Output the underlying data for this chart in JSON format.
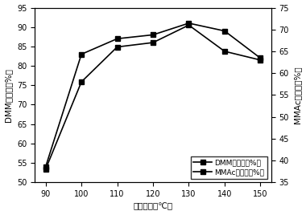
{
  "x": [
    90,
    100,
    110,
    120,
    130,
    140,
    150
  ],
  "dmm_conversion": [
    54,
    83,
    87,
    88,
    91,
    89,
    82
  ],
  "mmac_selectivity": [
    38,
    58,
    66,
    67,
    71,
    65,
    63
  ],
  "left_ylim": [
    50,
    95
  ],
  "left_yticks": [
    50,
    55,
    60,
    65,
    70,
    75,
    80,
    85,
    90,
    95
  ],
  "right_ylim": [
    35,
    75
  ],
  "right_yticks": [
    35,
    40,
    45,
    50,
    55,
    60,
    65,
    70,
    75
  ],
  "xticks": [
    90,
    100,
    110,
    120,
    130,
    140,
    150
  ],
  "xlabel": "处理温度（℃）",
  "ylabel_left": "DMM转化率（%）",
  "ylabel_right": "MMAc选择性（%）",
  "legend_dmm": "DMM转化率（%）",
  "legend_mmac": "MMAc选择性（%）",
  "line_color": "#000000",
  "marker": "s",
  "marker_size": 4,
  "line_width": 1.2,
  "bg_color": "#ffffff",
  "font_size": 7.5,
  "legend_font_size": 6.5
}
